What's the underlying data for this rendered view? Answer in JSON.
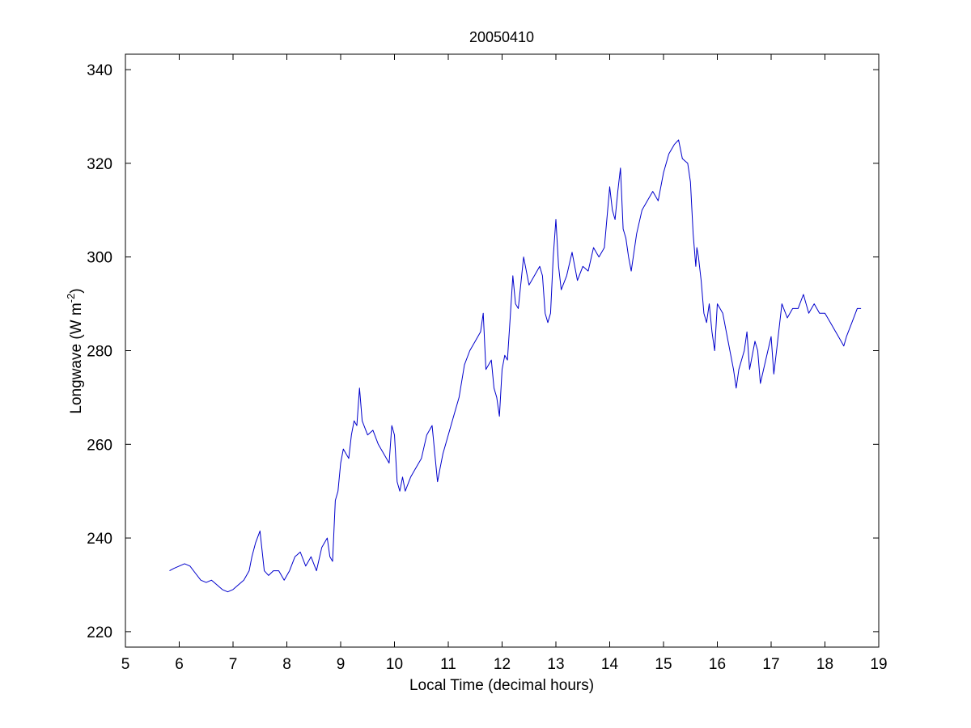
{
  "chart_data": {
    "type": "line",
    "title": "20050410",
    "xlabel": "Local Time (decimal hours)",
    "ylabel": {
      "base": "Longwave (W m",
      "sup": "-2",
      "close": ")"
    },
    "xlim": [
      5,
      19
    ],
    "ylim": [
      216.7,
      343.3
    ],
    "xticks": [
      5,
      6,
      7,
      8,
      9,
      10,
      11,
      12,
      13,
      14,
      15,
      16,
      17,
      18,
      19
    ],
    "yticks": [
      220,
      240,
      260,
      280,
      300,
      320,
      340
    ],
    "grid": false,
    "line_color": "#0000cc",
    "series": [
      {
        "x": [
          5.82,
          5.9,
          6.0,
          6.1,
          6.2,
          6.3,
          6.4,
          6.5,
          6.6,
          6.7,
          6.8,
          6.9,
          7.0,
          7.1,
          7.2,
          7.3,
          7.35,
          7.42,
          7.5,
          7.58,
          7.66,
          7.75,
          7.85,
          7.95,
          8.05,
          8.15,
          8.25,
          8.35,
          8.45,
          8.55,
          8.65,
          8.75,
          8.8,
          8.85,
          8.9,
          8.95,
          9.0,
          9.05,
          9.1,
          9.15,
          9.2,
          9.25,
          9.3,
          9.35,
          9.4,
          9.5,
          9.6,
          9.7,
          9.8,
          9.9,
          9.95,
          10.0,
          10.05,
          10.1,
          10.15,
          10.2,
          10.3,
          10.4,
          10.5,
          10.6,
          10.7,
          10.8,
          10.85,
          10.9,
          11.0,
          11.1,
          11.2,
          11.3,
          11.4,
          11.5,
          11.6,
          11.65,
          11.7,
          11.8,
          11.85,
          11.9,
          11.95,
          12.0,
          12.05,
          12.1,
          12.15,
          12.2,
          12.25,
          12.3,
          12.4,
          12.5,
          12.6,
          12.7,
          12.75,
          12.8,
          12.85,
          12.9,
          12.95,
          13.0,
          13.05,
          13.1,
          13.2,
          13.3,
          13.4,
          13.5,
          13.6,
          13.7,
          13.8,
          13.9,
          14.0,
          14.05,
          14.1,
          14.15,
          14.2,
          14.25,
          14.3,
          14.35,
          14.4,
          14.5,
          14.6,
          14.7,
          14.8,
          14.9,
          15.0,
          15.1,
          15.2,
          15.28,
          15.35,
          15.45,
          15.5,
          15.55,
          15.6,
          15.62,
          15.65,
          15.7,
          15.75,
          15.8,
          15.85,
          15.9,
          15.95,
          16.0,
          16.1,
          16.2,
          16.3,
          16.35,
          16.4,
          16.5,
          16.55,
          16.6,
          16.7,
          16.75,
          16.8,
          16.9,
          17.0,
          17.05,
          17.1,
          17.2,
          17.3,
          17.4,
          17.5,
          17.6,
          17.65,
          17.7,
          17.8,
          17.9,
          18.0,
          18.1,
          18.2,
          18.3,
          18.35,
          18.4,
          18.5,
          18.6,
          18.67
        ],
        "y": [
          233,
          233.5,
          234,
          234.5,
          234,
          232.5,
          231,
          230.5,
          231,
          230,
          229,
          228.5,
          229,
          230,
          231,
          233,
          236,
          239,
          241.5,
          233,
          232,
          233,
          233,
          231,
          233,
          236,
          237,
          234,
          236,
          233,
          238,
          240,
          236,
          235,
          248,
          250,
          256,
          259,
          258,
          257,
          262,
          265,
          264,
          272,
          265,
          262,
          263,
          260,
          258,
          256,
          264,
          262,
          252,
          250,
          253,
          250,
          253,
          255,
          257,
          262,
          264,
          252,
          255,
          258,
          262,
          266,
          270,
          277,
          280,
          282,
          284,
          288,
          276,
          278,
          272,
          270,
          266,
          276,
          279,
          278,
          287,
          296,
          290,
          289,
          300,
          294,
          296,
          298,
          296,
          288,
          286,
          288,
          300,
          308,
          298,
          293,
          296,
          301,
          295,
          298,
          297,
          302,
          300,
          302,
          315,
          310,
          308,
          314,
          319,
          306,
          304,
          300,
          297,
          305,
          310,
          312,
          314,
          312,
          318,
          322,
          324,
          325,
          321,
          320,
          316,
          305,
          298,
          302,
          300,
          295,
          288,
          286,
          290,
          284,
          280,
          290,
          288,
          282,
          276,
          272,
          276,
          280,
          284,
          276,
          282,
          280,
          273,
          278,
          283,
          275,
          280,
          290,
          287,
          289,
          289,
          292,
          290,
          288,
          290,
          288,
          288,
          286,
          284,
          282,
          281,
          283,
          286,
          289,
          289
        ]
      }
    ]
  }
}
